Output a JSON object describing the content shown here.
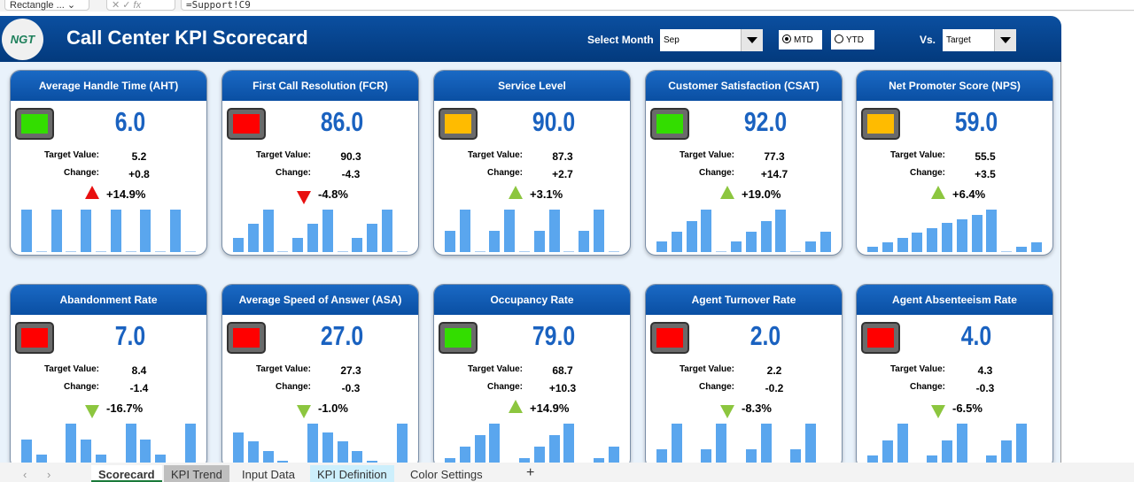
{
  "formula_bar": {
    "name_box": "Rectangle ...",
    "formula": "=Support!C9"
  },
  "header": {
    "logo": "NGT",
    "title": "Call Center KPI Scorecard",
    "month_label": "Select Month",
    "month": "Sep",
    "mtd": "MTD",
    "ytd": "YTD",
    "mode_selected": "MTD",
    "vs_label": "Vs.",
    "vs": "Target"
  },
  "colors": {
    "green": "#33dd00",
    "red": "#ff0000",
    "amber": "#ffbb00",
    "up_bad": "#e81010",
    "down_bad": "#e81010",
    "good": "#8cc63f",
    "bar": "#5aa6ee"
  },
  "labels": {
    "target": "Target Value:",
    "change": "Change:"
  },
  "cards": [
    {
      "title": "Average Handle Time (AHT)",
      "status": "green",
      "value": "6.0",
      "target": "5.2",
      "change": "+0.8",
      "pct": "+14.9%",
      "dir": "up",
      "arrow_color": "red",
      "bars": [
        1,
        0,
        1,
        0,
        1,
        0,
        1,
        0,
        1,
        0,
        1,
        0
      ]
    },
    {
      "title": "First Call Resolution (FCR)",
      "status": "red",
      "value": "86.0",
      "target": "90.3",
      "change": "-4.3",
      "pct": "-4.8%",
      "dir": "down",
      "arrow_color": "red",
      "bars": [
        0.33,
        0.67,
        1,
        0,
        0.33,
        0.67,
        1,
        0,
        0.33,
        0.67,
        1,
        0
      ]
    },
    {
      "title": "Service Level",
      "status": "amber",
      "value": "90.0",
      "target": "87.3",
      "change": "+2.7",
      "pct": "+3.1%",
      "dir": "up",
      "arrow_color": "green",
      "bars": [
        0.5,
        1,
        0,
        0.5,
        1,
        0,
        0.5,
        1,
        0,
        0.5,
        1,
        0
      ]
    },
    {
      "title": "Customer Satisfaction (CSAT)",
      "status": "green",
      "value": "92.0",
      "target": "77.3",
      "change": "+14.7",
      "pct": "+19.0%",
      "dir": "up",
      "arrow_color": "green",
      "bars": [
        0.25,
        0.47,
        0.73,
        1,
        0,
        0.25,
        0.47,
        0.73,
        1,
        0,
        0.25,
        0.47
      ]
    },
    {
      "title": "Net Promoter Score (NPS)",
      "status": "amber",
      "value": "59.0",
      "target": "55.5",
      "change": "+3.5",
      "pct": "+6.4%",
      "dir": "up",
      "arrow_color": "green",
      "bars": [
        0.13,
        0.23,
        0.33,
        0.45,
        0.56,
        0.68,
        0.77,
        0.88,
        1,
        0,
        0.13,
        0.23
      ]
    },
    {
      "title": "Abandonment Rate",
      "status": "red",
      "value": "7.0",
      "target": "8.4",
      "change": "-1.4",
      "pct": "-16.7%",
      "dir": "down",
      "arrow_color": "green",
      "bars": [
        0.63,
        0.27,
        0,
        1,
        0.63,
        0.27,
        0,
        1,
        0.63,
        0.27,
        0,
        1
      ]
    },
    {
      "title": "Average Speed of Answer (ASA)",
      "status": "red",
      "value": "27.0",
      "target": "27.3",
      "change": "-0.3",
      "pct": "-1.0%",
      "dir": "down",
      "arrow_color": "green",
      "bars": [
        0.8,
        0.58,
        0.35,
        0.13,
        0,
        1,
        0.8,
        0.58,
        0.35,
        0.13,
        0,
        1
      ]
    },
    {
      "title": "Occupancy Rate",
      "status": "green",
      "value": "79.0",
      "target": "68.7",
      "change": "+10.3",
      "pct": "+14.9%",
      "dir": "up",
      "arrow_color": "green",
      "bars": [
        0.18,
        0.45,
        0.73,
        1,
        0,
        0.18,
        0.45,
        0.73,
        1,
        0,
        0.18,
        0.45
      ]
    },
    {
      "title": "Agent Turnover Rate",
      "status": "red",
      "value": "2.0",
      "target": "2.2",
      "change": "-0.2",
      "pct": "-8.3%",
      "dir": "down",
      "arrow_color": "green",
      "bars": [
        0.4,
        1,
        0,
        0.4,
        1,
        0,
        0.4,
        1,
        0,
        0.4,
        1,
        0
      ]
    },
    {
      "title": "Agent Absenteeism Rate",
      "status": "red",
      "value": "4.0",
      "target": "4.3",
      "change": "-0.3",
      "pct": "-6.5%",
      "dir": "down",
      "arrow_color": "green",
      "bars": [
        0.25,
        0.6,
        1,
        0,
        0.25,
        0.6,
        1,
        0,
        0.25,
        0.6,
        1,
        0
      ]
    }
  ],
  "sheet_tabs": [
    "Scorecard",
    "KPI Trend",
    "Input Data",
    "KPI Definition",
    "Color Settings"
  ],
  "active_tab": "Scorecard",
  "add_sheet": "+"
}
